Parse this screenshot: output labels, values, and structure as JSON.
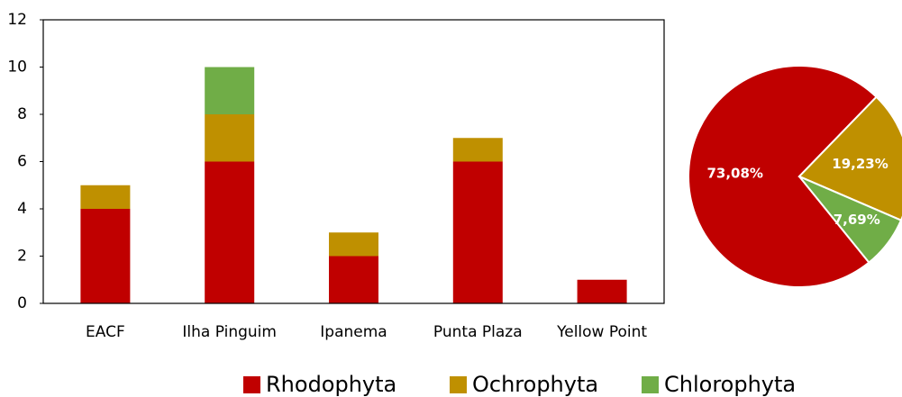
{
  "chart_data": [
    {
      "type": "bar",
      "stacked": true,
      "categories": [
        "EACF",
        "Ilha Pinguim",
        "Ipanema",
        "Punta Plaza",
        "Yellow Point"
      ],
      "series": [
        {
          "name": "Rhodophyta",
          "color": "#c00000",
          "values": [
            4,
            6,
            2,
            6,
            1
          ]
        },
        {
          "name": "Ochrophyta",
          "color": "#bf9000",
          "values": [
            1,
            2,
            1,
            1,
            0
          ]
        },
        {
          "name": "Chlorophyta",
          "color": "#70ad47",
          "values": [
            0,
            2,
            0,
            0,
            0
          ]
        }
      ],
      "ylim": [
        0,
        12
      ],
      "yticks": [
        0,
        2,
        4,
        6,
        8,
        10,
        12
      ],
      "grid": false,
      "legend": "bottom"
    },
    {
      "type": "pie",
      "values": [
        73.08,
        19.23,
        7.69
      ],
      "value_labels": [
        "73,08%",
        "19,23%",
        "7,69%"
      ],
      "colors": [
        "#c00000",
        "#bf9000",
        "#70ad47"
      ]
    }
  ]
}
